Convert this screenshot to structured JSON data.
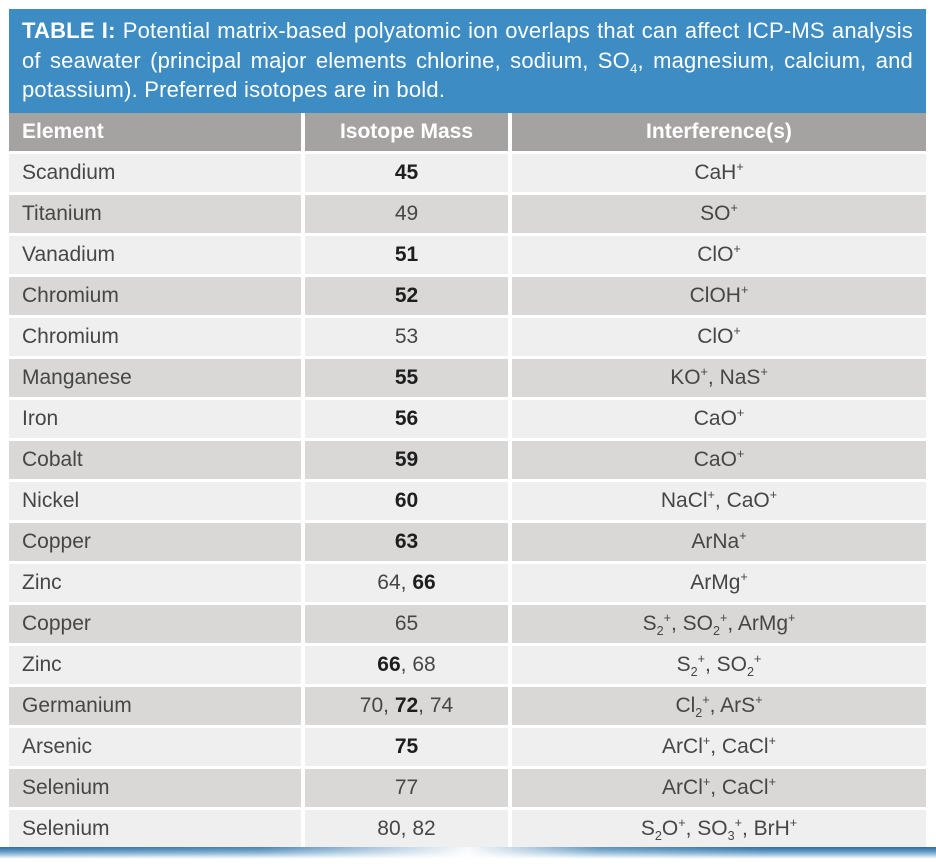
{
  "colors": {
    "banner_blue": "#3E8CC4",
    "header_gray": "#A5A3A2",
    "row_light": "#F0EFEF",
    "row_dark": "#D9D8D7"
  },
  "caption": "**TABLE I:** Potential matrix-based polyatomic ion overlaps that can affect ICP-MS analysis of seawater (principal major elements chlorine, sodium, SO_4_, magnesium, calcium, and potassium). Preferred isotopes are in bold.",
  "table": {
    "columns": [
      "Element",
      "Isotope Mass",
      "Interference(s)"
    ],
    "rows": [
      {
        "element": "Scandium",
        "isotope_mass": "**45**",
        "interferences": "CaH^+^"
      },
      {
        "element": "Titanium",
        "isotope_mass": "49",
        "interferences": "SO^+^"
      },
      {
        "element": "Vanadium",
        "isotope_mass": "**51**",
        "interferences": "ClO^+^"
      },
      {
        "element": "Chromium",
        "isotope_mass": "**52**",
        "interferences": "ClOH^+^"
      },
      {
        "element": "Chromium",
        "isotope_mass": "53",
        "interferences": "ClO^+^"
      },
      {
        "element": "Manganese",
        "isotope_mass": "**55**",
        "interferences": "KO^+^, NaS^+^"
      },
      {
        "element": "Iron",
        "isotope_mass": "**56**",
        "interferences": "CaO^+^"
      },
      {
        "element": "Cobalt",
        "isotope_mass": "**59**",
        "interferences": "CaO^+^"
      },
      {
        "element": "Nickel",
        "isotope_mass": "**60**",
        "interferences": "NaCl^+^, CaO^+^"
      },
      {
        "element": "Copper",
        "isotope_mass": "**63**",
        "interferences": "ArNa^+^"
      },
      {
        "element": "Zinc",
        "isotope_mass": "64, **66**",
        "interferences": "ArMg^+^"
      },
      {
        "element": "Copper",
        "isotope_mass": "65",
        "interferences": "S_2_^+^, SO_2_^+^, ArMg^+^"
      },
      {
        "element": "Zinc",
        "isotope_mass": "**66**, 68",
        "interferences": "S_2_^+^, SO_2_^+^"
      },
      {
        "element": "Germanium",
        "isotope_mass": "70, **72**, 74",
        "interferences": "Cl_2_^+^, ArS^+^"
      },
      {
        "element": "Arsenic",
        "isotope_mass": "**75**",
        "interferences": "ArCl^+^, CaCl^+^"
      },
      {
        "element": "Selenium",
        "isotope_mass": "77",
        "interferences": "ArCl^+^, CaCl^+^"
      },
      {
        "element": "Selenium",
        "isotope_mass": "80, 82",
        "interferences": "S_2_O^+^, SO_3_^+^, BrH^+^"
      }
    ]
  }
}
